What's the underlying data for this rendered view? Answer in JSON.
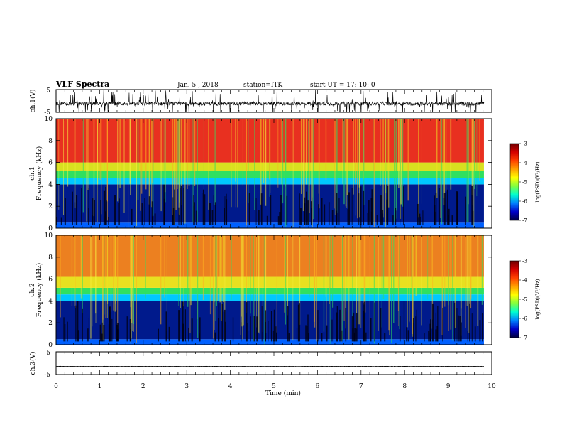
{
  "header": {
    "title": "VLF Spectra",
    "date": "Jan. 5 , 2018",
    "station": "station=ITK",
    "start": "start UT = 17: 10: 0"
  },
  "chart_data": [
    {
      "type": "line",
      "panel": "ch1-waveform",
      "ylabel": "ch.1(V)",
      "ylim": [
        -5,
        5
      ],
      "yticks": [
        "5",
        "-5"
      ],
      "baseline": -1.2,
      "color": "#000000"
    },
    {
      "type": "heatmap",
      "panel": "ch1-spectrogram",
      "ylabel": "ch.1 Frequency (kHz)",
      "ylabel_line1": "ch.1",
      "ylabel_line2": "Frequency (kHz)",
      "ylim": [
        0,
        10
      ],
      "yticks": [
        "10",
        "8",
        "6",
        "4",
        "2",
        "0"
      ],
      "zlabel": "log(PSD)(V²/Hz)",
      "zlim": [
        -7,
        -3
      ],
      "zticks": [
        "-3",
        "-4",
        "-5",
        "-6",
        "-7"
      ],
      "bands": [
        {
          "from_khz": 0,
          "to_khz": 0.5,
          "color": "#0060ff"
        },
        {
          "from_khz": 0.5,
          "to_khz": 4.0,
          "color": "#001a8c"
        },
        {
          "from_khz": 4.0,
          "to_khz": 4.6,
          "color": "#00c8ff"
        },
        {
          "from_khz": 4.6,
          "to_khz": 5.2,
          "color": "#30e060"
        },
        {
          "from_khz": 5.2,
          "to_khz": 6.0,
          "color": "#d8e020"
        },
        {
          "from_khz": 6.0,
          "to_khz": 10.0,
          "color": "#e83020"
        }
      ]
    },
    {
      "type": "heatmap",
      "panel": "ch2-spectrogram",
      "ylabel": "ch.2 Frequency (kHz)",
      "ylabel_line1": "ch.2",
      "ylabel_line2": "Frequency (kHz)",
      "ylim": [
        0,
        10
      ],
      "yticks": [
        "10",
        "8",
        "6",
        "4",
        "2",
        "0"
      ],
      "zlabel": "log(PSD)(V²/Hz)",
      "zlim": [
        -7,
        -3
      ],
      "zticks": [
        "-3",
        "-4",
        "-5",
        "-6",
        "-7"
      ],
      "bands": [
        {
          "from_khz": 0,
          "to_khz": 0.5,
          "color": "#0060ff"
        },
        {
          "from_khz": 0.5,
          "to_khz": 4.0,
          "color": "#001a8c"
        },
        {
          "from_khz": 4.0,
          "to_khz": 4.6,
          "color": "#00c8ff"
        },
        {
          "from_khz": 4.6,
          "to_khz": 5.2,
          "color": "#30e060"
        },
        {
          "from_khz": 5.2,
          "to_khz": 6.2,
          "color": "#e8e020"
        },
        {
          "from_khz": 6.2,
          "to_khz": 10.0,
          "color": "#ec8020"
        }
      ]
    },
    {
      "type": "line",
      "panel": "ch3-waveform",
      "ylabel": "ch.3(V)",
      "ylim": [
        -5,
        5
      ],
      "yticks": [
        "5",
        "-5"
      ],
      "baseline": -1.5,
      "color": "#000000"
    }
  ],
  "xaxis": {
    "label": "Time (min)",
    "range": [
      0,
      10
    ],
    "data_end": 9.82,
    "ticks": [
      "0",
      "1",
      "2",
      "3",
      "4",
      "5",
      "6",
      "7",
      "8",
      "9",
      "10"
    ]
  },
  "colorbar": {
    "stops": [
      "#6e0000",
      "#d40000",
      "#ff4000",
      "#ffa000",
      "#ffff00",
      "#80ff40",
      "#00ffd0",
      "#0080ff",
      "#0000c8",
      "#000040"
    ]
  }
}
